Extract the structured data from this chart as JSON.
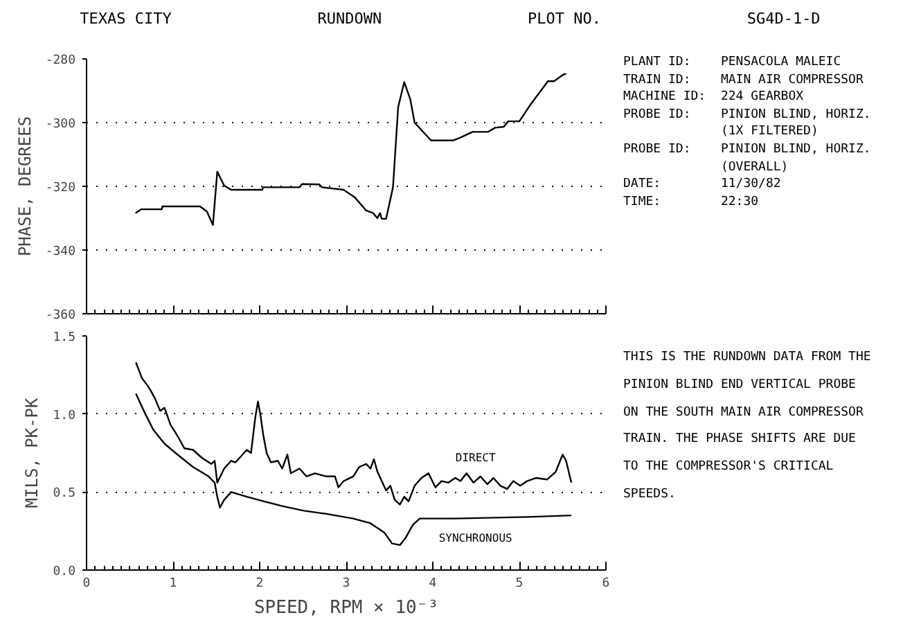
{
  "chart_data": [
    {
      "type": "other",
      "annotations": [
        "TEXAS CITY",
        "RUNDOWN",
        "PLOT NO.",
        "SG4D-1-D"
      ]
    },
    {
      "type": "line",
      "ylabel": "PHASE, DEGREES",
      "xlim": [
        0,
        6
      ],
      "xticks": [
        0,
        1,
        2,
        3,
        4,
        5,
        6
      ],
      "ylim": [
        -360,
        -280
      ],
      "yticks": [
        -360,
        -340,
        -320,
        -300,
        -280
      ],
      "grid": "y",
      "tick_labels": "y",
      "line_style": "solid",
      "series": [
        {
          "color": "#000000",
          "x": [
            0.565,
            0.63,
            0.87,
            0.875,
            1.31,
            1.39,
            1.46,
            1.51,
            1.59,
            1.67,
            2.03,
            2.04,
            2.46,
            2.49,
            2.69,
            2.72,
            2.97,
            3.1,
            3.23,
            3.31,
            3.36,
            3.39,
            3.41,
            3.46,
            3.54,
            3.6,
            3.67,
            3.74,
            3.79,
            3.87,
            3.98,
            4.23,
            4.31,
            4.46,
            4.64,
            4.72,
            4.82,
            4.87,
            5.0,
            5.13,
            5.33,
            5.4,
            5.51,
            5.54
          ],
          "values": [
            -328.4,
            -327.2,
            -327.2,
            -326.3,
            -326.3,
            -327.9,
            -332.1,
            -315.4,
            -319.8,
            -321.1,
            -321.1,
            -320.3,
            -320.3,
            -319.3,
            -319.4,
            -320.3,
            -321.1,
            -323.5,
            -327.6,
            -328.4,
            -330,
            -328.4,
            -330.2,
            -330.2,
            -320.3,
            -295.1,
            -287.3,
            -292.7,
            -300,
            -302.4,
            -305.6,
            -305.6,
            -304.8,
            -302.9,
            -302.9,
            -301.6,
            -301.3,
            -299.6,
            -299.6,
            -294.3,
            -287,
            -287,
            -284.9,
            -284.7
          ]
        }
      ]
    },
    {
      "type": "other",
      "annotations": [
        "PLANT ID:    PENSACOLA MALEIC",
        "TRAIN ID:    MAIN AIR COMPRESSOR",
        "MACHINE ID:  224 GEARBOX",
        "PROBE ID:    PINION BLIND, HORIZ.",
        "             (1X FILTERED)",
        "PROBE ID:    PINION BLIND, HORIZ.",
        "             (OVERALL)",
        "DATE:        11/30/82",
        "TIME:        22:30"
      ]
    },
    {
      "type": "line",
      "ylabel": "MILS, PK-PK",
      "xlabel": "SPEED, RPM × 10⁻³",
      "xlim": [
        0,
        6
      ],
      "xticks": [
        0,
        1,
        2,
        3,
        4,
        5,
        6
      ],
      "ylim": [
        0,
        1.5
      ],
      "yticks": [
        {
          "value": 0,
          "label": "0.0"
        },
        {
          "value": 0.5,
          "label": "0.5"
        },
        {
          "value": 1,
          "label": "1.0"
        },
        {
          "value": 1.5,
          "label": "1.5"
        }
      ],
      "grid": "y",
      "line_style": "solid",
      "series": [
        {
          "name": "DIRECT",
          "color": "#000000",
          "x": [
            0.57,
            0.64,
            0.72,
            0.79,
            0.85,
            0.9,
            0.97,
            1.05,
            1.13,
            1.23,
            1.33,
            1.44,
            1.48,
            1.51,
            1.59,
            1.67,
            1.72,
            1.77,
            1.85,
            1.9,
            1.95,
            1.98,
            2.01,
            2.04,
            2.08,
            2.13,
            2.21,
            2.26,
            2.32,
            2.36,
            2.46,
            2.54,
            2.64,
            2.77,
            2.87,
            2.91,
            2.97,
            3.08,
            3.15,
            3.23,
            3.28,
            3.32,
            3.36,
            3.41,
            3.46,
            3.51,
            3.56,
            3.62,
            3.67,
            3.72,
            3.79,
            3.87,
            3.95,
            4.03,
            4.1,
            4.18,
            4.26,
            4.32,
            4.39,
            4.47,
            4.55,
            4.63,
            4.7,
            4.78,
            4.86,
            4.93,
            5.01,
            5.09,
            5.19,
            5.32,
            5.42,
            5.5,
            5.54,
            5.6
          ],
          "values": [
            1.33,
            1.23,
            1.17,
            1.1,
            1.02,
            1.04,
            0.93,
            0.86,
            0.78,
            0.77,
            0.72,
            0.68,
            0.7,
            0.56,
            0.65,
            0.7,
            0.69,
            0.72,
            0.77,
            0.75,
            0.98,
            1.08,
            0.99,
            0.87,
            0.75,
            0.69,
            0.7,
            0.65,
            0.74,
            0.62,
            0.65,
            0.6,
            0.62,
            0.6,
            0.6,
            0.53,
            0.57,
            0.6,
            0.66,
            0.68,
            0.65,
            0.71,
            0.63,
            0.57,
            0.51,
            0.54,
            0.45,
            0.42,
            0.47,
            0.44,
            0.54,
            0.59,
            0.62,
            0.53,
            0.57,
            0.56,
            0.59,
            0.57,
            0.62,
            0.56,
            0.6,
            0.55,
            0.59,
            0.54,
            0.52,
            0.57,
            0.54,
            0.57,
            0.59,
            0.58,
            0.63,
            0.74,
            0.7,
            0.56
          ]
        },
        {
          "name": "SYNCHRONOUS",
          "color": "#000000",
          "x": [
            0.57,
            0.67,
            0.77,
            0.9,
            1.05,
            1.23,
            1.41,
            1.48,
            1.51,
            1.54,
            1.59,
            1.67,
            1.85,
            2.05,
            2.26,
            2.51,
            2.77,
            3.08,
            3.28,
            3.44,
            3.53,
            3.62,
            3.69,
            3.77,
            3.85,
            3.95,
            4.26,
            5.09,
            5.6
          ],
          "values": [
            1.13,
            1.01,
            0.9,
            0.81,
            0.74,
            0.66,
            0.6,
            0.56,
            0.47,
            0.4,
            0.45,
            0.5,
            0.47,
            0.44,
            0.41,
            0.38,
            0.36,
            0.33,
            0.3,
            0.24,
            0.17,
            0.16,
            0.21,
            0.29,
            0.33,
            0.33,
            0.33,
            0.34,
            0.35
          ]
        }
      ]
    },
    {
      "type": "other",
      "annotations": [
        "THIS IS THE RUNDOWN DATA FROM THE",
        "PINION BLIND END VERTICAL PROBE",
        "ON THE SOUTH MAIN AIR COMPRESSOR",
        "TRAIN. THE PHASE SHIFTS ARE DUE",
        "TO THE COMPRESSOR'S CRITICAL",
        "SPEEDS."
      ]
    }
  ]
}
